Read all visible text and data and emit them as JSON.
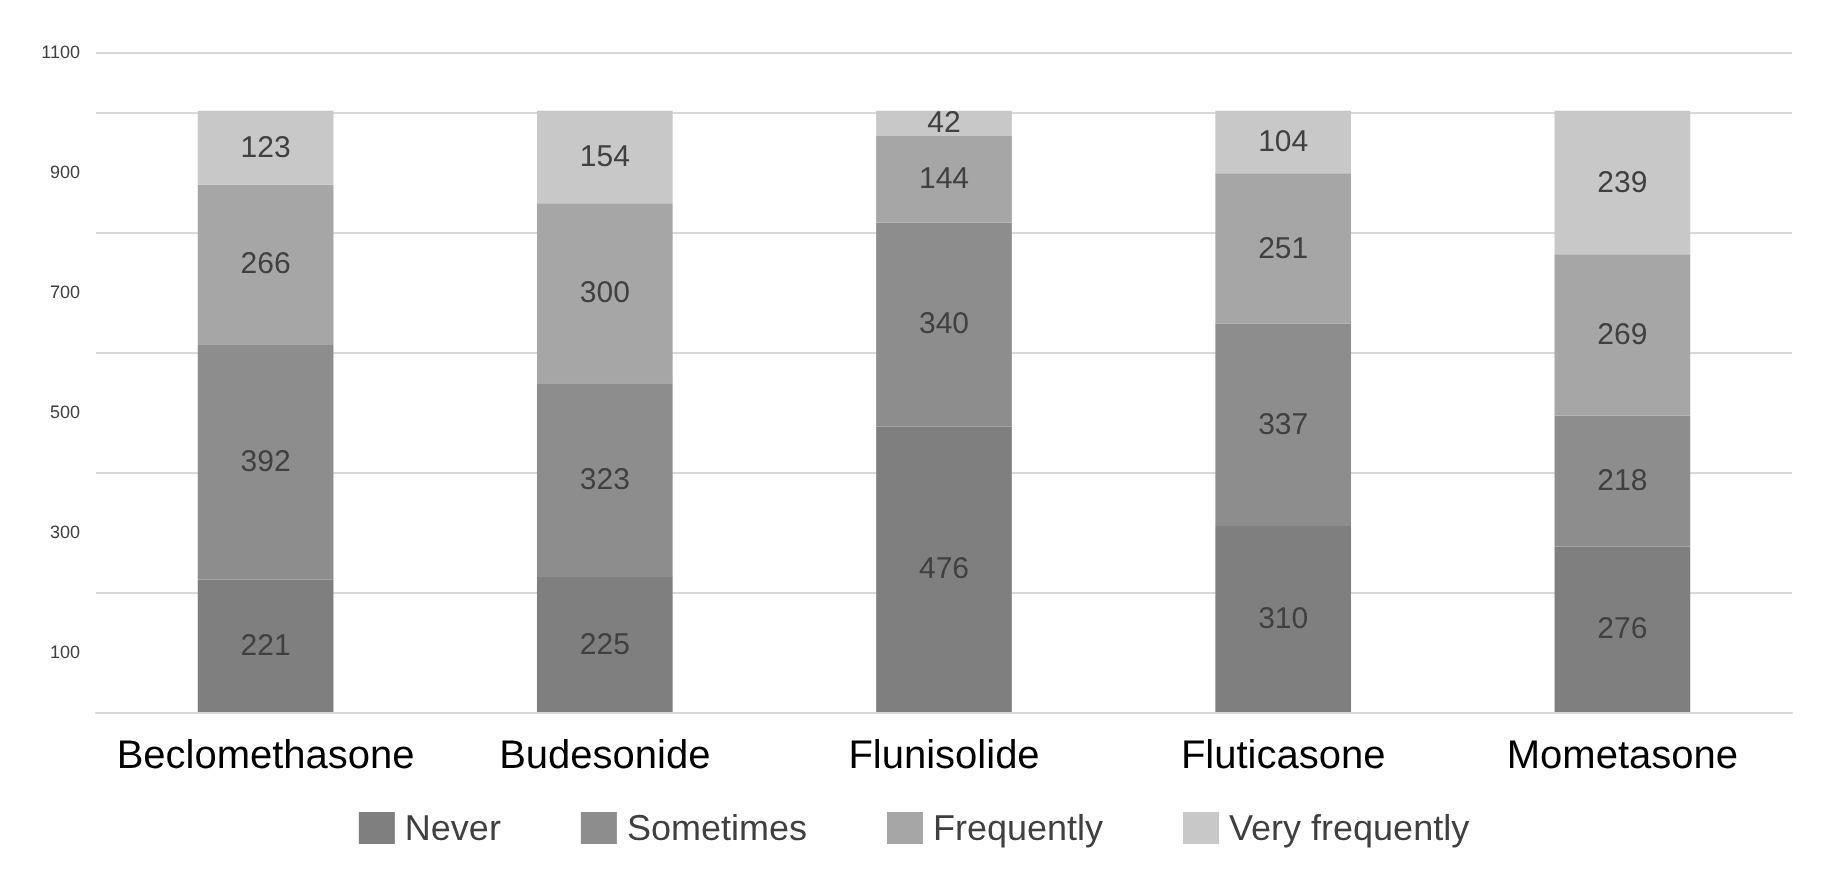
{
  "chart_data": {
    "type": "bar",
    "stacked": true,
    "categories": [
      "Beclomethasone",
      "Budesonide",
      "Flunisolide",
      "Fluticasone",
      "Mometasone"
    ],
    "series": [
      {
        "name": "Never",
        "color": "#7f7f7f",
        "values": [
          221,
          225,
          476,
          310,
          276
        ]
      },
      {
        "name": "Sometimes",
        "color": "#8d8d8d",
        "values": [
          392,
          323,
          340,
          337,
          218
        ]
      },
      {
        "name": "Frequently",
        "color": "#a6a6a6",
        "values": [
          266,
          300,
          144,
          251,
          269
        ]
      },
      {
        "name": "Very frequently",
        "color": "#c8c8c8",
        "values": [
          123,
          154,
          42,
          104,
          239
        ]
      }
    ],
    "ylim": [
      0,
      1100
    ],
    "yticks": [
      100,
      300,
      500,
      700,
      900,
      1100
    ],
    "grid": "y",
    "legend": "bottom",
    "data_labels": true
  }
}
